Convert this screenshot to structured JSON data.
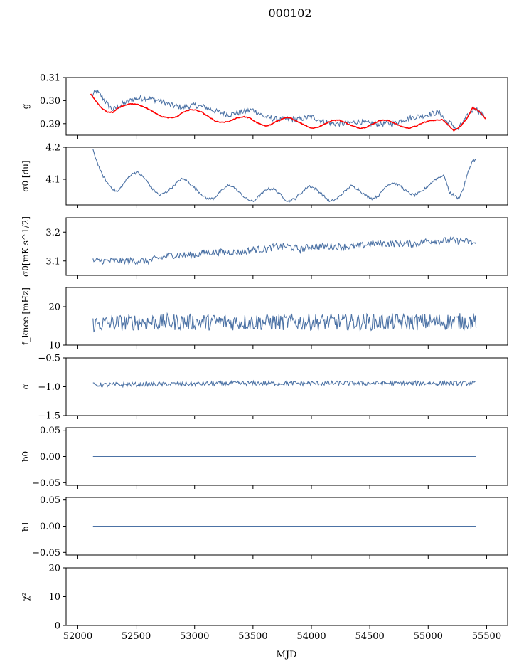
{
  "figure": {
    "title": "000102",
    "xlabel": "MJD",
    "x_ticks": [
      52000,
      52500,
      53000,
      53500,
      54000,
      54500,
      55000,
      55500
    ],
    "x_tick_labels": [
      "52000",
      "52500",
      "53000",
      "53500",
      "54000",
      "54500",
      "55000",
      "55500"
    ]
  },
  "colors": {
    "series": "#4c72a5",
    "fit": "#ff0000"
  },
  "chart_data": [
    {
      "id": "g",
      "type": "line",
      "ylabel": "g",
      "xlim": [
        51900,
        55680
      ],
      "ylim": [
        0.285,
        0.31
      ],
      "yticks": [
        0.29,
        0.3,
        0.31
      ],
      "ytick_labels": [
        "0.29",
        "0.30",
        "0.31"
      ],
      "series": [
        {
          "points": [
            [
              52120,
              0.302
            ],
            [
              52160,
              0.304
            ],
            [
              52200,
              0.302
            ],
            [
              52260,
              0.298
            ],
            [
              52300,
              0.296
            ],
            [
              52400,
              0.299
            ],
            [
              52500,
              0.301
            ],
            [
              52600,
              0.301
            ],
            [
              52700,
              0.3
            ],
            [
              52800,
              0.298
            ],
            [
              52900,
              0.297
            ],
            [
              53000,
              0.298
            ],
            [
              53100,
              0.297
            ],
            [
              53200,
              0.295
            ],
            [
              53300,
              0.294
            ],
            [
              53400,
              0.295
            ],
            [
              53500,
              0.296
            ],
            [
              53600,
              0.293
            ],
            [
              53700,
              0.292
            ],
            [
              53800,
              0.292
            ],
            [
              53900,
              0.292
            ],
            [
              54000,
              0.293
            ],
            [
              54100,
              0.291
            ],
            [
              54200,
              0.29
            ],
            [
              54300,
              0.29
            ],
            [
              54400,
              0.291
            ],
            [
              54500,
              0.29
            ],
            [
              54600,
              0.29
            ],
            [
              54700,
              0.29
            ],
            [
              54800,
              0.292
            ],
            [
              54900,
              0.293
            ],
            [
              55000,
              0.294
            ],
            [
              55100,
              0.295
            ],
            [
              55150,
              0.291
            ],
            [
              55200,
              0.29
            ],
            [
              55250,
              0.287
            ],
            [
              55300,
              0.291
            ],
            [
              55350,
              0.294
            ],
            [
              55400,
              0.297
            ],
            [
              55440,
              0.295
            ],
            [
              55490,
              0.293
            ]
          ]
        },
        {
          "points": [
            [
              52110,
              0.303
            ],
            [
              52150,
              0.3
            ],
            [
              52200,
              0.297
            ],
            [
              52250,
              0.295
            ],
            [
              52300,
              0.295
            ],
            [
              52350,
              0.297
            ],
            [
              52430,
              0.2985
            ],
            [
              52500,
              0.2985
            ],
            [
              52580,
              0.297
            ],
            [
              52650,
              0.295
            ],
            [
              52720,
              0.293
            ],
            [
              52780,
              0.2925
            ],
            [
              52850,
              0.293
            ],
            [
              52900,
              0.295
            ],
            [
              52960,
              0.296
            ],
            [
              53000,
              0.296
            ],
            [
              53060,
              0.295
            ],
            [
              53120,
              0.293
            ],
            [
              53180,
              0.291
            ],
            [
              53230,
              0.2905
            ],
            [
              53300,
              0.291
            ],
            [
              53360,
              0.2925
            ],
            [
              53420,
              0.293
            ],
            [
              53470,
              0.2925
            ],
            [
              53530,
              0.2905
            ],
            [
              53600,
              0.289
            ],
            [
              53650,
              0.2895
            ],
            [
              53700,
              0.291
            ],
            [
              53780,
              0.2925
            ],
            [
              53820,
              0.2925
            ],
            [
              53880,
              0.291
            ],
            [
              53940,
              0.2895
            ],
            [
              54000,
              0.288
            ],
            [
              54060,
              0.2885
            ],
            [
              54120,
              0.29
            ],
            [
              54180,
              0.2915
            ],
            [
              54240,
              0.2915
            ],
            [
              54290,
              0.2905
            ],
            [
              54350,
              0.289
            ],
            [
              54420,
              0.288
            ],
            [
              54470,
              0.2885
            ],
            [
              54530,
              0.29
            ],
            [
              54590,
              0.2915
            ],
            [
              54650,
              0.2915
            ],
            [
              54700,
              0.2905
            ],
            [
              54760,
              0.289
            ],
            [
              54830,
              0.288
            ],
            [
              54900,
              0.289
            ],
            [
              54960,
              0.2905
            ],
            [
              55030,
              0.2915
            ],
            [
              55090,
              0.2915
            ],
            [
              55120,
              0.292
            ],
            [
              55160,
              0.29
            ],
            [
              55220,
              0.287
            ],
            [
              55280,
              0.289
            ],
            [
              55330,
              0.292
            ],
            [
              55380,
              0.297
            ],
            [
              55420,
              0.296
            ],
            [
              55470,
              0.2935
            ],
            [
              55490,
              0.292
            ]
          ]
        }
      ]
    },
    {
      "id": "sigma0_du",
      "type": "line",
      "ylabel": "σ0 [du]",
      "xlim": [
        51900,
        55680
      ],
      "ylim": [
        4.02,
        4.2
      ],
      "yticks": [
        4.1,
        4.2
      ],
      "ytick_labels": [
        "4.1",
        "4.2"
      ],
      "series": [
        {
          "points": [
            [
              52130,
              4.19
            ],
            [
              52160,
              4.16
            ],
            [
              52200,
              4.12
            ],
            [
              52250,
              4.09
            ],
            [
              52300,
              4.07
            ],
            [
              52340,
              4.06
            ],
            [
              52380,
              4.08
            ],
            [
              52440,
              4.11
            ],
            [
              52480,
              4.12
            ],
            [
              52520,
              4.12
            ],
            [
              52580,
              4.1
            ],
            [
              52640,
              4.07
            ],
            [
              52700,
              4.05
            ],
            [
              52760,
              4.06
            ],
            [
              52820,
              4.08
            ],
            [
              52880,
              4.1
            ],
            [
              52920,
              4.1
            ],
            [
              52980,
              4.08
            ],
            [
              53040,
              4.06
            ],
            [
              53100,
              4.04
            ],
            [
              53160,
              4.04
            ],
            [
              53220,
              4.06
            ],
            [
              53280,
              4.08
            ],
            [
              53320,
              4.08
            ],
            [
              53380,
              4.06
            ],
            [
              53440,
              4.04
            ],
            [
              53500,
              4.03
            ],
            [
              53560,
              4.05
            ],
            [
              53620,
              4.07
            ],
            [
              53680,
              4.07
            ],
            [
              53740,
              4.05
            ],
            [
              53800,
              4.03
            ],
            [
              53860,
              4.04
            ],
            [
              53920,
              4.06
            ],
            [
              53980,
              4.08
            ],
            [
              54040,
              4.07
            ],
            [
              54100,
              4.05
            ],
            [
              54160,
              4.03
            ],
            [
              54220,
              4.04
            ],
            [
              54280,
              4.06
            ],
            [
              54340,
              4.08
            ],
            [
              54400,
              4.07
            ],
            [
              54460,
              4.05
            ],
            [
              54520,
              4.04
            ],
            [
              54580,
              4.05
            ],
            [
              54640,
              4.08
            ],
            [
              54700,
              4.09
            ],
            [
              54760,
              4.08
            ],
            [
              54820,
              4.06
            ],
            [
              54880,
              4.05
            ],
            [
              54940,
              4.06
            ],
            [
              55000,
              4.08
            ],
            [
              55060,
              4.1
            ],
            [
              55110,
              4.11
            ],
            [
              55140,
              4.11
            ],
            [
              55180,
              4.06
            ],
            [
              55220,
              4.05
            ],
            [
              55260,
              4.04
            ],
            [
              55300,
              4.07
            ],
            [
              55340,
              4.12
            ],
            [
              55380,
              4.16
            ],
            [
              55410,
              4.16
            ]
          ]
        }
      ]
    },
    {
      "id": "sigma0_mk",
      "type": "line",
      "ylabel": "σ0[mK s^1/2]",
      "xlim": [
        51900,
        55680
      ],
      "ylim": [
        3.05,
        3.25
      ],
      "yticks": [
        3.1,
        3.2
      ],
      "ytick_labels": [
        "3.1",
        "3.2"
      ],
      "series": [
        {
          "points": [
            [
              52130,
              3.1
            ],
            [
              52200,
              3.1
            ],
            [
              52300,
              3.1
            ],
            [
              52400,
              3.1
            ],
            [
              52500,
              3.1
            ],
            [
              52600,
              3.1
            ],
            [
              52700,
              3.11
            ],
            [
              52800,
              3.12
            ],
            [
              52900,
              3.12
            ],
            [
              53000,
              3.12
            ],
            [
              53100,
              3.13
            ],
            [
              53200,
              3.13
            ],
            [
              53300,
              3.13
            ],
            [
              53400,
              3.13
            ],
            [
              53500,
              3.14
            ],
            [
              53600,
              3.14
            ],
            [
              53700,
              3.15
            ],
            [
              53800,
              3.15
            ],
            [
              53900,
              3.14
            ],
            [
              54000,
              3.15
            ],
            [
              54100,
              3.15
            ],
            [
              54200,
              3.15
            ],
            [
              54300,
              3.15
            ],
            [
              54400,
              3.15
            ],
            [
              54500,
              3.16
            ],
            [
              54600,
              3.16
            ],
            [
              54700,
              3.16
            ],
            [
              54800,
              3.16
            ],
            [
              54900,
              3.16
            ],
            [
              55000,
              3.17
            ],
            [
              55100,
              3.17
            ],
            [
              55200,
              3.17
            ],
            [
              55300,
              3.17
            ],
            [
              55410,
              3.16
            ]
          ]
        }
      ]
    },
    {
      "id": "fknee",
      "type": "line",
      "ylabel": "f_knee [mHz]",
      "xlim": [
        51900,
        55680
      ],
      "ylim": [
        10,
        25
      ],
      "yticks": [
        10,
        20
      ],
      "ytick_labels": [
        "10",
        "20"
      ],
      "series": [
        {
          "points": [
            [
              52130,
              15.5
            ],
            [
              52500,
              16
            ],
            [
              53000,
              16
            ],
            [
              53500,
              16
            ],
            [
              54000,
              16
            ],
            [
              54500,
              16
            ],
            [
              55000,
              16
            ],
            [
              55410,
              16.2
            ]
          ]
        }
      ]
    },
    {
      "id": "alpha",
      "type": "line",
      "ylabel": "α",
      "xlim": [
        51900,
        55680
      ],
      "ylim": [
        -1.5,
        -0.5
      ],
      "yticks": [
        -1.5,
        -1.0,
        -0.5
      ],
      "ytick_labels": [
        "−1.5",
        "−1.0",
        "−0.5"
      ],
      "series": [
        {
          "points": [
            [
              52130,
              -0.97
            ],
            [
              52500,
              -0.96
            ],
            [
              53000,
              -0.95
            ],
            [
              53500,
              -0.94
            ],
            [
              54000,
              -0.94
            ],
            [
              54500,
              -0.94
            ],
            [
              55000,
              -0.94
            ],
            [
              55410,
              -0.94
            ]
          ]
        }
      ]
    },
    {
      "id": "b0",
      "type": "line",
      "ylabel": "b0",
      "xlim": [
        51900,
        55680
      ],
      "ylim": [
        -0.055,
        0.055
      ],
      "yticks": [
        -0.05,
        0.0,
        0.05
      ],
      "ytick_labels": [
        "−0.05",
        "0.00",
        "0.05"
      ],
      "series": [
        {
          "points": [
            [
              52130,
              0.0
            ],
            [
              55410,
              0.0
            ]
          ]
        }
      ]
    },
    {
      "id": "b1",
      "type": "line",
      "ylabel": "b1",
      "xlim": [
        51900,
        55680
      ],
      "ylim": [
        -0.055,
        0.055
      ],
      "yticks": [
        -0.05,
        0.0,
        0.05
      ],
      "ytick_labels": [
        "−0.05",
        "0.00",
        "0.05"
      ],
      "series": [
        {
          "points": [
            [
              52130,
              0.0
            ],
            [
              55410,
              0.0
            ]
          ]
        }
      ]
    },
    {
      "id": "chi2",
      "type": "line",
      "ylabel": "χ²",
      "xlim": [
        51900,
        55680
      ],
      "ylim": [
        0,
        20
      ],
      "yticks": [
        0,
        10,
        20
      ],
      "ytick_labels": [
        "0",
        "10",
        "20"
      ],
      "series": [
        {
          "points": [
            [
              52130,
              0.0
            ],
            [
              55410,
              0.0
            ]
          ]
        }
      ]
    }
  ]
}
